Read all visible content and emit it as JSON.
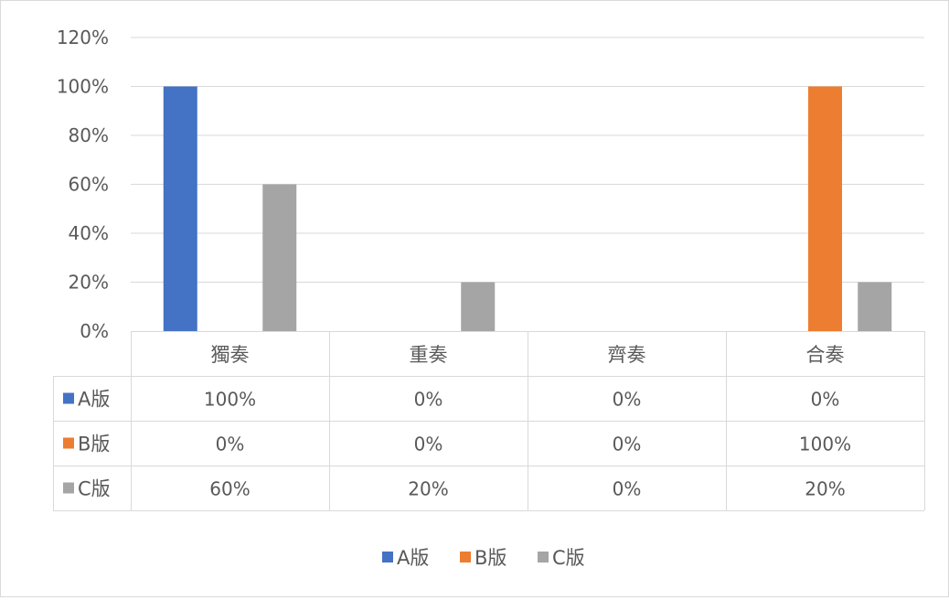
{
  "chart_data": {
    "type": "bar",
    "categories": [
      "獨奏",
      "重奏",
      "齊奏",
      "合奏"
    ],
    "series": [
      {
        "name": "A版",
        "values": [
          100,
          0,
          0,
          0
        ],
        "color": "#4472c4"
      },
      {
        "name": "B版",
        "values": [
          0,
          0,
          0,
          100
        ],
        "color": "#ed7d31"
      },
      {
        "name": "C版",
        "values": [
          60,
          20,
          0,
          20
        ],
        "color": "#a5a5a5"
      }
    ],
    "ylim": [
      0,
      120
    ],
    "yticks": [
      "0%",
      "20%",
      "40%",
      "60%",
      "80%",
      "100%",
      "120%"
    ],
    "ytick_values": [
      0,
      20,
      40,
      60,
      80,
      100,
      120
    ],
    "table": [
      [
        "100%",
        "0%",
        "0%",
        "0%"
      ],
      [
        "0%",
        "0%",
        "0%",
        "100%"
      ],
      [
        "60%",
        "20%",
        "0%",
        "20%"
      ]
    ],
    "grid": true,
    "legend": "bottom",
    "title": "",
    "xlabel": "",
    "ylabel": ""
  }
}
